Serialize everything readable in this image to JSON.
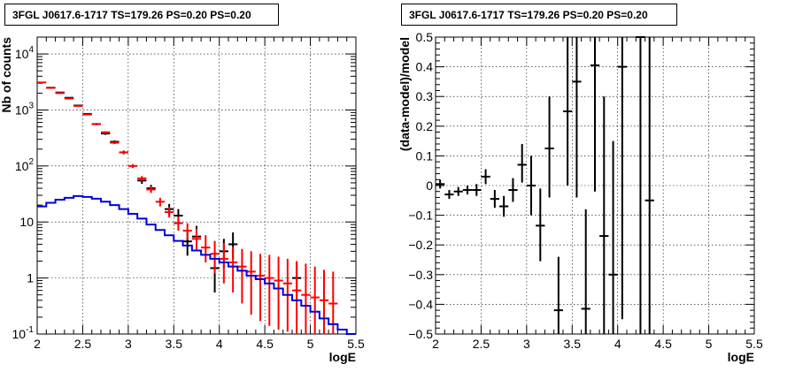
{
  "chart_data": [
    {
      "type": "scatter",
      "title": "3FGL J0617.6-1717 TS=179.26 PS=0.20 PS=0.20",
      "xlabel": "logE",
      "ylabel": "Nb of counts",
      "xlim": [
        2,
        5.5
      ],
      "ylim": [
        0.1,
        20000
      ],
      "log_y": true,
      "grid": true,
      "x_ticks": [
        {
          "v": 2,
          "label": "2"
        },
        {
          "v": 2.5,
          "label": "2.5"
        },
        {
          "v": 3,
          "label": "3"
        },
        {
          "v": 3.5,
          "label": "3.5"
        },
        {
          "v": 4,
          "label": "4"
        },
        {
          "v": 4.5,
          "label": "4.5"
        },
        {
          "v": 5,
          "label": "5"
        },
        {
          "v": 5.5,
          "label": "5.5"
        }
      ],
      "y_ticks": [
        {
          "v": 0.1,
          "base": "10",
          "exp": "-1"
        },
        {
          "v": 1,
          "base": "1",
          "exp": ""
        },
        {
          "v": 10,
          "base": "10",
          "exp": ""
        },
        {
          "v": 100,
          "base": "10",
          "exp": "2"
        },
        {
          "v": 1000,
          "base": "10",
          "exp": "3"
        },
        {
          "v": 10000,
          "base": "10",
          "exp": "4"
        }
      ],
      "series": [
        {
          "color": "#000000",
          "points": [
            {
              "x": 2.15,
              "y": 2500,
              "lo": 2450,
              "hi": 2550
            },
            {
              "x": 2.25,
              "y": 2050,
              "lo": 2000,
              "hi": 2100
            },
            {
              "x": 2.35,
              "y": 1650,
              "lo": 1610,
              "hi": 1690
            },
            {
              "x": 2.45,
              "y": 1200,
              "lo": 1165,
              "hi": 1235
            },
            {
              "x": 2.55,
              "y": 850,
              "lo": 820,
              "hi": 880
            },
            {
              "x": 2.65,
              "y": 560,
              "lo": 535,
              "hi": 585
            },
            {
              "x": 2.75,
              "y": 380,
              "lo": 360,
              "hi": 400
            },
            {
              "x": 2.85,
              "y": 270,
              "lo": 254,
              "hi": 286
            },
            {
              "x": 2.95,
              "y": 175,
              "lo": 162,
              "hi": 188
            },
            {
              "x": 3.15,
              "y": 55,
              "lo": 48,
              "hi": 62
            },
            {
              "x": 3.25,
              "y": 40,
              "lo": 34,
              "hi": 46
            },
            {
              "x": 3.45,
              "y": 17,
              "lo": 13,
              "hi": 21
            },
            {
              "x": 3.55,
              "y": 13,
              "lo": 10,
              "hi": 17
            },
            {
              "x": 3.65,
              "y": 4.5,
              "lo": 2.5,
              "hi": 7
            },
            {
              "x": 3.75,
              "y": 5.5,
              "lo": 3.3,
              "hi": 8.5
            },
            {
              "x": 3.95,
              "y": 1.5,
              "lo": 0.55,
              "hi": 3
            },
            {
              "x": 4.05,
              "y": 3.0,
              "lo": 1.5,
              "hi": 5
            },
            {
              "x": 4.15,
              "y": 4.0,
              "lo": 2.2,
              "hi": 6.5
            },
            {
              "x": 4.85,
              "y": 1.0,
              "lo": 0.45,
              "hi": 1.9
            }
          ]
        },
        {
          "color": "#ff0000",
          "points": [
            {
              "x": 2.05,
              "y": 3100,
              "lo": 3040,
              "hi": 3160
            },
            {
              "x": 2.15,
              "y": 2480,
              "lo": 2430,
              "hi": 2530
            },
            {
              "x": 2.25,
              "y": 2000,
              "lo": 1960,
              "hi": 2040
            },
            {
              "x": 2.35,
              "y": 1600,
              "lo": 1565,
              "hi": 1635
            },
            {
              "x": 2.45,
              "y": 1180,
              "lo": 1150,
              "hi": 1210
            },
            {
              "x": 2.55,
              "y": 830,
              "lo": 805,
              "hi": 855
            },
            {
              "x": 2.65,
              "y": 560,
              "lo": 540,
              "hi": 580
            },
            {
              "x": 2.75,
              "y": 400,
              "lo": 383,
              "hi": 417
            },
            {
              "x": 2.85,
              "y": 260,
              "lo": 247,
              "hi": 273
            },
            {
              "x": 2.95,
              "y": 175,
              "lo": 165,
              "hi": 185
            },
            {
              "x": 3.05,
              "y": 100,
              "lo": 92,
              "hi": 108
            },
            {
              "x": 3.15,
              "y": 60,
              "lo": 54,
              "hi": 66
            },
            {
              "x": 3.25,
              "y": 38,
              "lo": 33,
              "hi": 43
            },
            {
              "x": 3.35,
              "y": 23,
              "lo": 19,
              "hi": 27
            },
            {
              "x": 3.45,
              "y": 15,
              "lo": 12,
              "hi": 18.5
            },
            {
              "x": 3.55,
              "y": 9.5,
              "lo": 7,
              "hi": 12.5
            },
            {
              "x": 3.65,
              "y": 7,
              "lo": 4.8,
              "hi": 9.5
            },
            {
              "x": 3.75,
              "y": 5,
              "lo": 3,
              "hi": 7.5
            },
            {
              "x": 3.85,
              "y": 3.5,
              "lo": 1.9,
              "hi": 5.8
            },
            {
              "x": 3.95,
              "y": 2.7,
              "lo": 1.2,
              "hi": 4.6
            },
            {
              "x": 4.05,
              "y": 2.2,
              "lo": 0.8,
              "hi": 4.2
            },
            {
              "x": 4.15,
              "y": 1.9,
              "lo": 0.55,
              "hi": 3.6
            },
            {
              "x": 4.25,
              "y": 1.6,
              "lo": 0.35,
              "hi": 3.3
            },
            {
              "x": 4.35,
              "y": 1.3,
              "lo": 0.22,
              "hi": 3.0
            },
            {
              "x": 4.45,
              "y": 1.1,
              "lo": 0.17,
              "hi": 2.7
            },
            {
              "x": 4.55,
              "y": 1.0,
              "lo": 0.14,
              "hi": 2.6
            },
            {
              "x": 4.65,
              "y": 0.9,
              "lo": 0.12,
              "hi": 2.4
            },
            {
              "x": 4.75,
              "y": 0.8,
              "lo": 0.11,
              "hi": 2.2
            },
            {
              "x": 4.85,
              "y": 0.6,
              "lo": 0.1,
              "hi": 2.0
            },
            {
              "x": 4.95,
              "y": 0.5,
              "lo": 0.1,
              "hi": 1.8
            },
            {
              "x": 5.05,
              "y": 0.45,
              "lo": 0.1,
              "hi": 1.6
            },
            {
              "x": 5.15,
              "y": 0.4,
              "lo": 0.1,
              "hi": 1.4
            },
            {
              "x": 5.25,
              "y": 0.35,
              "lo": 0.1,
              "hi": 1.3
            }
          ]
        },
        {
          "color": "#0000dd",
          "step": true,
          "edges": [
            2.0,
            2.1,
            2.2,
            2.3,
            2.4,
            2.5,
            2.6,
            2.7,
            2.8,
            2.9,
            3.0,
            3.1,
            3.2,
            3.3,
            3.4,
            3.5,
            3.6,
            3.7,
            3.8,
            3.9,
            4.0,
            4.1,
            4.2,
            4.3,
            4.4,
            4.5,
            4.6,
            4.7,
            4.8,
            4.9,
            5.0,
            5.1,
            5.2,
            5.3,
            5.4,
            5.5
          ],
          "values": [
            19,
            22,
            25,
            27,
            29,
            28,
            26,
            23,
            20,
            17,
            14,
            11.5,
            9,
            7.2,
            5.8,
            4.6,
            3.8,
            3.1,
            2.6,
            2.2,
            1.9,
            1.6,
            1.35,
            1.1,
            0.95,
            0.8,
            0.65,
            0.5,
            0.4,
            0.32,
            0.25,
            0.19,
            0.15,
            0.12,
            0.1
          ]
        }
      ]
    },
    {
      "type": "scatter",
      "title": "3FGL J0617.6-1717 TS=179.26 PS=0.20 PS=0.20",
      "xlabel": "logE",
      "ylabel": "(data-model)/model",
      "xlim": [
        2,
        5.5
      ],
      "ylim": [
        -0.5,
        0.5
      ],
      "grid": true,
      "x_ticks": [
        {
          "v": 2,
          "label": "2"
        },
        {
          "v": 2.5,
          "label": "2.5"
        },
        {
          "v": 3,
          "label": "3"
        },
        {
          "v": 3.5,
          "label": "3.5"
        },
        {
          "v": 4,
          "label": "4"
        },
        {
          "v": 4.5,
          "label": "4.5"
        },
        {
          "v": 5,
          "label": "5"
        },
        {
          "v": 5.5,
          "label": "5.5"
        }
      ],
      "y_ticks": [
        {
          "v": -0.5,
          "label": "−0.5"
        },
        {
          "v": -0.4,
          "label": "−0.4"
        },
        {
          "v": -0.3,
          "label": "−0.3"
        },
        {
          "v": -0.2,
          "label": "−0.2"
        },
        {
          "v": -0.1,
          "label": "−0.1"
        },
        {
          "v": 0,
          "label": "0"
        },
        {
          "v": 0.1,
          "label": "0.1"
        },
        {
          "v": 0.2,
          "label": "0.2"
        },
        {
          "v": 0.3,
          "label": "0.3"
        },
        {
          "v": 0.4,
          "label": "0.4"
        },
        {
          "v": 0.5,
          "label": "0.5"
        }
      ],
      "series": [
        {
          "color": "#000000",
          "points": [
            {
              "x": 2.05,
              "y": 0.005,
              "lo": -0.01,
              "hi": 0.02
            },
            {
              "x": 2.15,
              "y": -0.03,
              "lo": -0.045,
              "hi": -0.015
            },
            {
              "x": 2.25,
              "y": -0.02,
              "lo": -0.035,
              "hi": -0.005
            },
            {
              "x": 2.35,
              "y": -0.015,
              "lo": -0.03,
              "hi": 0.0
            },
            {
              "x": 2.45,
              "y": -0.015,
              "lo": -0.035,
              "hi": 0.005
            },
            {
              "x": 2.55,
              "y": 0.03,
              "lo": 0.005,
              "hi": 0.055
            },
            {
              "x": 2.65,
              "y": -0.045,
              "lo": -0.075,
              "hi": -0.015
            },
            {
              "x": 2.75,
              "y": -0.07,
              "lo": -0.105,
              "hi": -0.035
            },
            {
              "x": 2.85,
              "y": -0.015,
              "lo": -0.055,
              "hi": 0.025
            },
            {
              "x": 2.95,
              "y": 0.07,
              "lo": 0.01,
              "hi": 0.14
            },
            {
              "x": 3.05,
              "y": 0.0,
              "lo": -0.1,
              "hi": 0.1
            },
            {
              "x": 3.15,
              "y": -0.135,
              "lo": -0.255,
              "hi": -0.01
            },
            {
              "x": 3.25,
              "y": 0.125,
              "lo": -0.04,
              "hi": 0.3
            },
            {
              "x": 3.35,
              "y": -0.42,
              "lo": -0.5,
              "hi": -0.24
            },
            {
              "x": 3.45,
              "y": 0.25,
              "lo": 0.0,
              "hi": 0.5
            },
            {
              "x": 3.55,
              "y": 0.35,
              "lo": -0.04,
              "hi": 0.5
            },
            {
              "x": 3.65,
              "y": -0.415,
              "lo": -0.5,
              "hi": -0.08
            },
            {
              "x": 3.75,
              "y": 0.405,
              "lo": -0.02,
              "hi": 0.5
            },
            {
              "x": 3.85,
              "y": -0.17,
              "lo": -0.5,
              "hi": 0.3
            },
            {
              "x": 3.95,
              "y": -0.3,
              "lo": -0.5,
              "hi": 0.15
            },
            {
              "x": 4.05,
              "y": 0.4,
              "lo": -0.45,
              "hi": 0.5
            },
            {
              "x": 4.25,
              "y": 0.5,
              "lo": -0.5,
              "hi": 0.5
            },
            {
              "x": 4.35,
              "y": -0.05,
              "lo": -0.5,
              "hi": 0.5
            }
          ]
        }
      ]
    }
  ]
}
